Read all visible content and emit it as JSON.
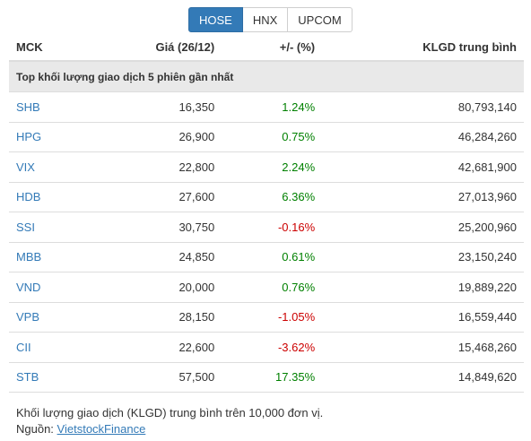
{
  "tabs": [
    {
      "label": "HOSE",
      "active": true
    },
    {
      "label": "HNX",
      "active": false
    },
    {
      "label": "UPCOM",
      "active": false
    }
  ],
  "table": {
    "headers": {
      "symbol": "MCK",
      "price": "Giá (26/12)",
      "change": "+/- (%)",
      "volume": "KLGD trung bình"
    },
    "group_title": "Top khối lượng giao dịch 5 phiên gần nhất",
    "rows": [
      {
        "symbol": "SHB",
        "price": "16,350",
        "change": "1.24%",
        "direction": "up",
        "volume": "80,793,140"
      },
      {
        "symbol": "HPG",
        "price": "26,900",
        "change": "0.75%",
        "direction": "up",
        "volume": "46,284,260"
      },
      {
        "symbol": "VIX",
        "price": "22,800",
        "change": "2.24%",
        "direction": "up",
        "volume": "42,681,900"
      },
      {
        "symbol": "HDB",
        "price": "27,600",
        "change": "6.36%",
        "direction": "up",
        "volume": "27,013,960"
      },
      {
        "symbol": "SSI",
        "price": "30,750",
        "change": "-0.16%",
        "direction": "down",
        "volume": "25,200,960"
      },
      {
        "symbol": "MBB",
        "price": "24,850",
        "change": "0.61%",
        "direction": "up",
        "volume": "23,150,240"
      },
      {
        "symbol": "VND",
        "price": "20,000",
        "change": "0.76%",
        "direction": "up",
        "volume": "19,889,220"
      },
      {
        "symbol": "VPB",
        "price": "28,150",
        "change": "-1.05%",
        "direction": "down",
        "volume": "16,559,440"
      },
      {
        "symbol": "CII",
        "price": "22,600",
        "change": "-3.62%",
        "direction": "down",
        "volume": "15,468,260"
      },
      {
        "symbol": "STB",
        "price": "57,500",
        "change": "17.35%",
        "direction": "up",
        "volume": "14,849,620"
      }
    ]
  },
  "footer": {
    "note": "Khối lượng giao dịch (KLGD) trung bình trên 10,000 đơn vị.",
    "source_prefix": "Nguồn: ",
    "source_link": "VietstockFinance"
  },
  "colors": {
    "accent": "#337ab7",
    "up": "#008000",
    "down": "#cc0000"
  }
}
